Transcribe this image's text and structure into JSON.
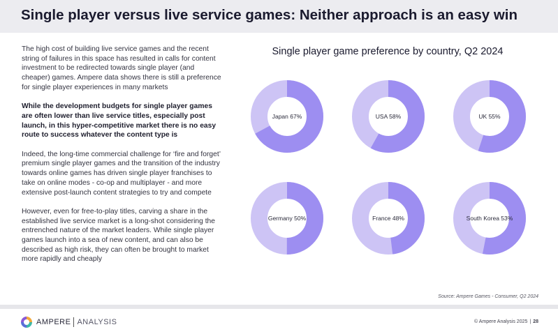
{
  "header": {
    "title": "Single player versus live service games: Neither approach is an easy win"
  },
  "body_text": {
    "para1": "The high cost of building live service games and the recent string of failures in this space has resulted in calls for content investment to be redirected towards single player (and cheaper) games. Ampere data shows there is still a preference for single player experiences in many markets",
    "para2": "While the development budgets for single player games are often lower than live service titles, especially post launch, in this hyper-competitive market there is no easy route to success whatever the content type is",
    "para3": "Indeed, the long-time commercial challenge for ‘fire and forget’ premium single player games and the transition of the industry towards online games has driven single player franchises to take on online modes - co-op and multiplayer - and more extensive post-launch content strategies to try and compete",
    "para4": "However, even for free-to-play titles, carving a share in the established live service market is a long-shot considering the entrenched nature of the market leaders. While single player games launch into a sea of new content, and can also be described as high risk, they can often be brought to market more rapidly and cheaply"
  },
  "chart_data": {
    "type": "pie",
    "variant": "donut",
    "title": "Single player game preference by country, Q2 2024",
    "unit": "%",
    "categories": [
      "Japan",
      "USA",
      "UK",
      "Germany",
      "France",
      "South Korea"
    ],
    "values": [
      67,
      58,
      55,
      50,
      48,
      53
    ],
    "labels": [
      "Japan 67%",
      "USA 58%",
      "UK 55%",
      "Germany 50%",
      "France 48%",
      "South Korea 53%"
    ],
    "colors": {
      "value": "#9d8ef1",
      "remainder": "#cdc4f5"
    }
  },
  "source": "Source: Ampere Games - Consumer, Q2 2024",
  "footer": {
    "brand": "AMPERE",
    "brand_sub": "ANALYSIS",
    "copyright": "© Ampere Analysis 2025",
    "separator": "|",
    "page": "28"
  }
}
